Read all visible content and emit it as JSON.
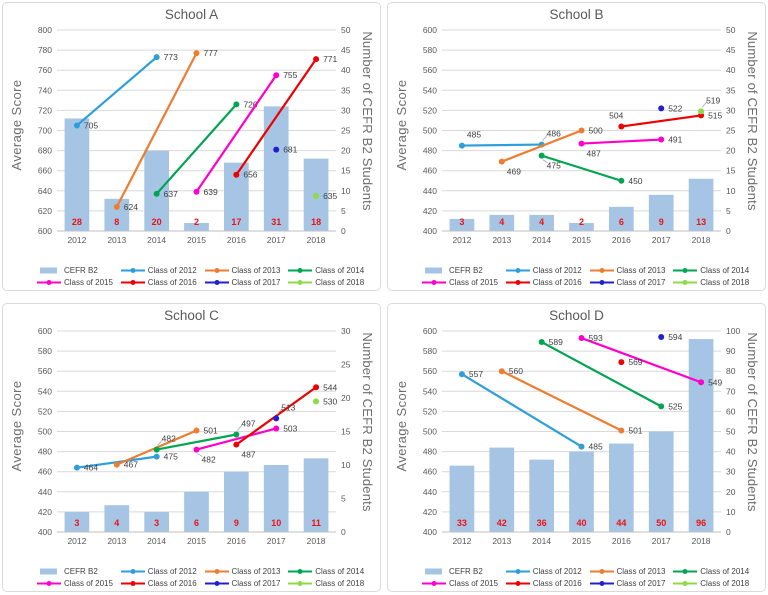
{
  "legend": {
    "bar_label": "CEFR B2"
  },
  "colors": {
    "bar": "#a6c5e5",
    "grid": "#d9d9d9",
    "axis_line": "#bfbfbf",
    "tick_text": "#595959",
    "title_text": "#595959",
    "bar_value_text": "#ee1111",
    "point_label_text": "#404040",
    "leader": "#a6a6a6"
  },
  "chart_data": [
    {
      "type": "bar+line",
      "title": "School A",
      "ylabel_left": "Average Score",
      "ylabel_right": "Number of CEFR B2 Students",
      "years": [
        2012,
        2013,
        2014,
        2015,
        2016,
        2017,
        2018
      ],
      "left_axis": {
        "min": 600,
        "max": 800,
        "step": 20
      },
      "right_axis": {
        "min": 0,
        "max": 50,
        "step": 5
      },
      "bars": [
        28,
        8,
        20,
        2,
        17,
        31,
        18
      ],
      "series": [
        {
          "name": "Class of 2012",
          "color": "#2e9fda",
          "points": [
            [
              2012,
              705,
              "r",
              0
            ],
            [
              2014,
              773,
              "r",
              0
            ]
          ]
        },
        {
          "name": "Class of 2013",
          "color": "#ed7d31",
          "points": [
            [
              2013,
              624,
              "r",
              0
            ],
            [
              2015,
              777,
              "r",
              0
            ]
          ]
        },
        {
          "name": "Class of 2014",
          "color": "#00a550",
          "points": [
            [
              2014,
              637,
              "r",
              0
            ],
            [
              2016,
              726,
              "r",
              0
            ]
          ]
        },
        {
          "name": "Class of 2015",
          "color": "#ff00cc",
          "points": [
            [
              2015,
              639,
              "r",
              0
            ],
            [
              2017,
              755,
              "r",
              0
            ]
          ]
        },
        {
          "name": "Class of 2016",
          "color": "#ee0000",
          "points": [
            [
              2016,
              656,
              "r",
              0
            ],
            [
              2018,
              771,
              "r",
              0
            ]
          ]
        },
        {
          "name": "Class of 2017",
          "color": "#2020d0",
          "points": [
            [
              2017,
              681,
              "r",
              0
            ]
          ]
        },
        {
          "name": "Class of 2018",
          "color": "#8edb47",
          "points": [
            [
              2018,
              635,
              "r",
              0
            ]
          ]
        }
      ]
    },
    {
      "type": "bar+line",
      "title": "School B",
      "ylabel_left": "Average Score",
      "ylabel_right": "Number of CEFR B2 Students",
      "years": [
        2012,
        2013,
        2014,
        2015,
        2016,
        2017,
        2018
      ],
      "left_axis": {
        "min": 400,
        "max": 600,
        "step": 20
      },
      "right_axis": {
        "min": 0,
        "max": 50,
        "step": 5
      },
      "bars": [
        3,
        4,
        4,
        2,
        6,
        9,
        13
      ],
      "series": [
        {
          "name": "Class of 2012",
          "color": "#2e9fda",
          "points": [
            [
              2012,
              485,
              "a",
              0
            ],
            [
              2014,
              486,
              "a",
              1
            ]
          ]
        },
        {
          "name": "Class of 2013",
          "color": "#ed7d31",
          "points": [
            [
              2013,
              469,
              "b",
              0
            ],
            [
              2015,
              500,
              "r",
              0
            ]
          ]
        },
        {
          "name": "Class of 2014",
          "color": "#00a550",
          "points": [
            [
              2014,
              475,
              "b",
              1
            ],
            [
              2016,
              450,
              "r",
              0
            ]
          ]
        },
        {
          "name": "Class of 2015",
          "color": "#ff00cc",
          "points": [
            [
              2015,
              487,
              "b",
              0
            ],
            [
              2017,
              491,
              "r",
              0
            ]
          ]
        },
        {
          "name": "Class of 2016",
          "color": "#ee0000",
          "points": [
            [
              2016,
              504,
              "al",
              0
            ],
            [
              2018,
              515,
              "r",
              0
            ]
          ]
        },
        {
          "name": "Class of 2017",
          "color": "#2020d0",
          "points": [
            [
              2017,
              522,
              "r",
              0
            ]
          ]
        },
        {
          "name": "Class of 2018",
          "color": "#8edb47",
          "points": [
            [
              2018,
              519,
              "a",
              1
            ]
          ]
        }
      ]
    },
    {
      "type": "bar+line",
      "title": "School C",
      "ylabel_left": "Average Score",
      "ylabel_right": "Number of CEFR B2 Students",
      "years": [
        2012,
        2013,
        2014,
        2015,
        2016,
        2017,
        2018
      ],
      "left_axis": {
        "min": 400,
        "max": 600,
        "step": 20
      },
      "right_axis": {
        "min": 0,
        "max": 30,
        "step": 5
      },
      "bars": [
        3,
        4,
        3,
        6,
        9,
        10,
        11
      ],
      "series": [
        {
          "name": "Class of 2012",
          "color": "#2e9fda",
          "points": [
            [
              2012,
              464,
              "r",
              0
            ],
            [
              2014,
              475,
              "r",
              0
            ]
          ]
        },
        {
          "name": "Class of 2013",
          "color": "#ed7d31",
          "points": [
            [
              2013,
              467,
              "r",
              0
            ],
            [
              2015,
              501,
              "r",
              0
            ]
          ]
        },
        {
          "name": "Class of 2014",
          "color": "#00a550",
          "points": [
            [
              2014,
              482,
              "a",
              1
            ],
            [
              2016,
              497,
              "a",
              1
            ]
          ]
        },
        {
          "name": "Class of 2015",
          "color": "#ff00cc",
          "points": [
            [
              2015,
              482,
              "b",
              1
            ],
            [
              2017,
              503,
              "r",
              0
            ]
          ]
        },
        {
          "name": "Class of 2016",
          "color": "#ee0000",
          "points": [
            [
              2016,
              487,
              "b",
              0
            ],
            [
              2018,
              544,
              "r",
              0
            ]
          ]
        },
        {
          "name": "Class of 2017",
          "color": "#2020d0",
          "points": [
            [
              2017,
              513,
              "a",
              1
            ]
          ]
        },
        {
          "name": "Class of 2018",
          "color": "#8edb47",
          "points": [
            [
              2018,
              530,
              "r",
              0
            ]
          ]
        }
      ]
    },
    {
      "type": "bar+line",
      "title": "School D",
      "ylabel_left": "Average Score",
      "ylabel_right": "Number of CEFR B2 Students",
      "years": [
        2012,
        2013,
        2014,
        2015,
        2016,
        2017,
        2018
      ],
      "left_axis": {
        "min": 400,
        "max": 600,
        "step": 20
      },
      "right_axis": {
        "min": 0,
        "max": 100,
        "step": 10
      },
      "bars": [
        33,
        42,
        36,
        40,
        44,
        50,
        96
      ],
      "series": [
        {
          "name": "Class of 2012",
          "color": "#2e9fda",
          "points": [
            [
              2012,
              557,
              "r",
              0
            ],
            [
              2015,
              485,
              "r",
              0
            ]
          ]
        },
        {
          "name": "Class of 2013",
          "color": "#ed7d31",
          "points": [
            [
              2013,
              560,
              "r",
              0
            ],
            [
              2016,
              501,
              "r",
              0
            ]
          ]
        },
        {
          "name": "Class of 2014",
          "color": "#00a550",
          "points": [
            [
              2014,
              589,
              "r",
              0
            ],
            [
              2017,
              525,
              "r",
              0
            ]
          ]
        },
        {
          "name": "Class of 2015",
          "color": "#ff00cc",
          "points": [
            [
              2015,
              593,
              "r",
              0
            ],
            [
              2018,
              549,
              "r",
              0
            ]
          ]
        },
        {
          "name": "Class of 2016",
          "color": "#ee0000",
          "points": [
            [
              2016,
              569,
              "r",
              0
            ]
          ]
        },
        {
          "name": "Class of 2017",
          "color": "#2020d0",
          "points": [
            [
              2017,
              594,
              "r",
              0
            ]
          ]
        },
        {
          "name": "Class of 2018",
          "color": "#8edb47",
          "points": []
        }
      ]
    }
  ]
}
